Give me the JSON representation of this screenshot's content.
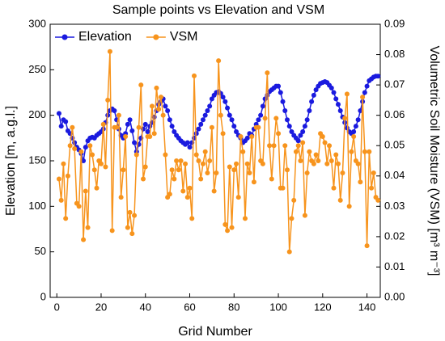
{
  "chart_data": {
    "type": "line",
    "title": "Sample points vs Elevation and VSM",
    "xlabel": "Grid Number",
    "ylabel": "Elevation [m, a.g.l.]",
    "y2label": "Volumetric Soil Moisture (VSM) [m³ m⁻³]",
    "legend": "upper left",
    "xlim": [
      -3,
      146
    ],
    "xticks": [
      0,
      20,
      40,
      60,
      80,
      100,
      120,
      140
    ],
    "ylim": [
      0,
      300
    ],
    "yticks": [
      0,
      50,
      100,
      150,
      200,
      250,
      300
    ],
    "y2lim": [
      0,
      0.09
    ],
    "y2ticks": [
      {
        "value": 0,
        "label": "0.00"
      },
      {
        "value": 0.01,
        "label": "0.01"
      },
      {
        "value": 0.02,
        "label": "0.02"
      },
      {
        "value": 0.03,
        "label": "0.03"
      },
      {
        "value": 0.04,
        "label": "0.04"
      },
      {
        "value": 0.05,
        "label": "0.05"
      },
      {
        "value": 0.06,
        "label": "0.06"
      },
      {
        "value": 0.07,
        "label": "0.07"
      },
      {
        "value": 0.08,
        "label": "0.08"
      },
      {
        "value": 0.09,
        "label": "0.09"
      }
    ],
    "x": [
      1,
      2,
      3,
      4,
      5,
      6,
      7,
      8,
      9,
      10,
      11,
      12,
      13,
      14,
      15,
      16,
      17,
      18,
      19,
      20,
      21,
      22,
      23,
      24,
      25,
      26,
      27,
      28,
      29,
      30,
      31,
      32,
      33,
      34,
      35,
      36,
      37,
      38,
      39,
      40,
      41,
      42,
      43,
      44,
      45,
      46,
      47,
      48,
      49,
      50,
      51,
      52,
      53,
      54,
      55,
      56,
      57,
      58,
      59,
      60,
      61,
      62,
      63,
      64,
      65,
      66,
      67,
      68,
      69,
      70,
      71,
      72,
      73,
      74,
      75,
      76,
      77,
      78,
      79,
      80,
      81,
      82,
      83,
      84,
      85,
      86,
      87,
      88,
      89,
      90,
      91,
      92,
      93,
      94,
      95,
      96,
      97,
      98,
      99,
      100,
      101,
      102,
      103,
      104,
      105,
      106,
      107,
      108,
      109,
      110,
      111,
      112,
      113,
      114,
      115,
      116,
      117,
      118,
      119,
      120,
      121,
      122,
      123,
      124,
      125,
      126,
      127,
      128,
      129,
      130,
      131,
      132,
      133,
      134,
      135,
      136,
      137,
      138,
      139,
      140,
      141,
      142,
      143,
      144,
      145
    ],
    "series": [
      {
        "name": "Elevation",
        "color": "#1a1adf",
        "values": [
          202,
          188,
          195,
          193,
          183,
          180,
          175,
          170,
          165,
          162,
          158,
          150,
          165,
          172,
          175,
          176,
          175,
          178,
          180,
          182,
          185,
          192,
          200,
          205,
          207,
          205,
          195,
          185,
          178,
          175,
          180,
          190,
          195,
          183,
          170,
          160,
          168,
          175,
          185,
          190,
          182,
          188,
          192,
          198,
          205,
          212,
          215,
          218,
          210,
          205,
          195,
          188,
          182,
          178,
          175,
          172,
          170,
          168,
          170,
          165,
          170,
          175,
          180,
          185,
          190,
          195,
          200,
          205,
          210,
          218,
          222,
          225,
          226,
          224,
          220,
          215,
          208,
          200,
          195,
          188,
          182,
          178,
          175,
          170,
          172,
          175,
          180,
          178,
          185,
          190,
          195,
          200,
          210,
          218,
          222,
          226,
          228,
          230,
          232,
          232,
          225,
          215,
          205,
          195,
          188,
          182,
          178,
          175,
          172,
          178,
          182,
          188,
          195,
          205,
          215,
          222,
          228,
          232,
          235,
          236,
          237,
          236,
          233,
          230,
          225,
          218,
          212,
          205,
          198,
          192,
          186,
          182,
          180,
          182,
          188,
          195,
          205,
          215,
          225,
          232,
          238,
          240,
          242,
          243,
          243
        ]
      },
      {
        "name": "VSM",
        "color": "#f7941d",
        "axis": "y2",
        "values": [
          0.039,
          0.032,
          0.044,
          0.026,
          0.04,
          0.05,
          0.056,
          0.049,
          0.031,
          0.03,
          0.048,
          0.019,
          0.035,
          0.023,
          0.05,
          0.047,
          0.042,
          0.036,
          0.045,
          0.044,
          0.057,
          0.043,
          0.065,
          0.081,
          0.022,
          0.056,
          0.056,
          0.06,
          0.033,
          0.042,
          0.053,
          0.023,
          0.028,
          0.021,
          0.027,
          0.047,
          0.056,
          0.07,
          0.039,
          0.043,
          0.053,
          0.053,
          0.063,
          0.054,
          0.069,
          0.062,
          0.066,
          0.06,
          0.047,
          0.033,
          0.034,
          0.042,
          0.039,
          0.045,
          0.042,
          0.045,
          0.035,
          0.044,
          0.033,
          0.036,
          0.026,
          0.073,
          0.047,
          0.045,
          0.039,
          0.044,
          0.048,
          0.041,
          0.045,
          0.056,
          0.035,
          0.041,
          0.078,
          0.06,
          0.054,
          0.024,
          0.022,
          0.043,
          0.023,
          0.042,
          0.044,
          0.033,
          0.053,
          0.048,
          0.026,
          0.044,
          0.041,
          0.053,
          0.038,
          0.056,
          0.056,
          0.045,
          0.044,
          0.059,
          0.074,
          0.05,
          0.039,
          0.05,
          0.059,
          0.054,
          0.036,
          0.036,
          0.05,
          0.042,
          0.015,
          0.026,
          0.032,
          0.048,
          0.05,
          0.045,
          0.051,
          0.027,
          0.041,
          0.048,
          0.045,
          0.044,
          0.047,
          0.045,
          0.054,
          0.053,
          0.051,
          0.044,
          0.05,
          0.045,
          0.036,
          0.047,
          0.044,
          0.032,
          0.041,
          0.059,
          0.067,
          0.03,
          0.048,
          0.053,
          0.045,
          0.044,
          0.038,
          0.066,
          0.048,
          0.017,
          0.048,
          0.036,
          0.041,
          0.033,
          0.032
        ]
      }
    ]
  }
}
